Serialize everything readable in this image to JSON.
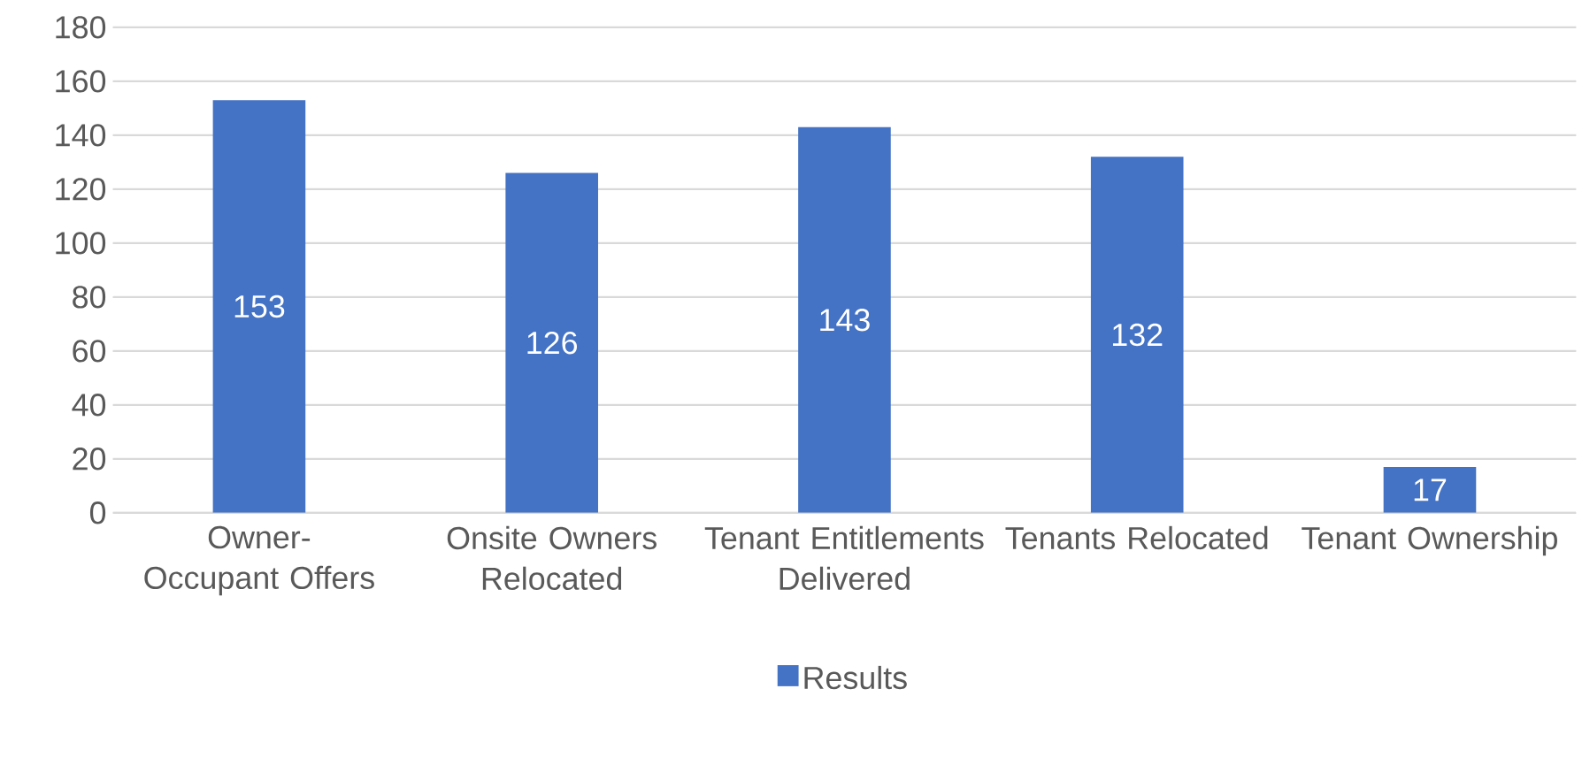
{
  "chart_data": {
    "type": "bar",
    "categories": [
      "Owner-Occupant Offers",
      "Onsite Owners Relocated",
      "Tenant Entitlements Delivered",
      "Tenants Relocated",
      "Tenant Ownership"
    ],
    "series": [
      {
        "name": "Results",
        "color": "#4472c4",
        "values": [
          153,
          126,
          143,
          132,
          17
        ]
      }
    ],
    "ylim": [
      0,
      180
    ],
    "yticks": [
      0,
      20,
      40,
      60,
      80,
      100,
      120,
      140,
      160,
      180
    ],
    "grid": "y",
    "legend": "bottom",
    "data_labels": true
  }
}
